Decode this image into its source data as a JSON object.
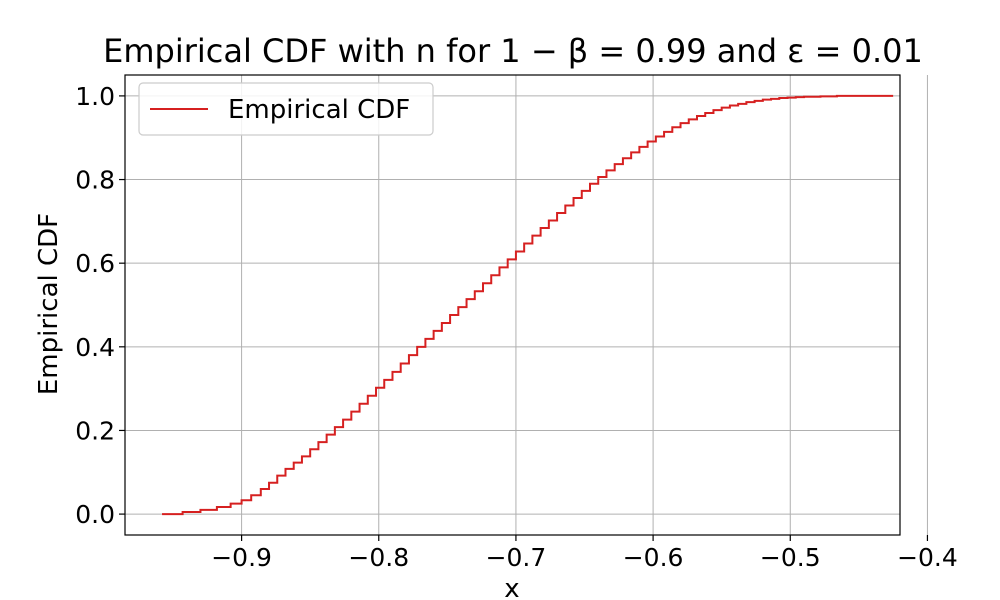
{
  "chart_data": {
    "type": "line",
    "step": "post",
    "title": "Empirical CDF with n for 1 − β = 0.99 and ε = 0.01",
    "xlabel": "x",
    "ylabel": "Empirical CDF",
    "xlim": [
      -0.985,
      -0.42
    ],
    "ylim": [
      -0.05,
      1.05
    ],
    "xticks": [
      -0.9,
      -0.8,
      -0.7,
      -0.6,
      -0.5,
      -0.4
    ],
    "xtick_labels": [
      "−0.9",
      "−0.8",
      "−0.7",
      "−0.6",
      "−0.5",
      "−0.4"
    ],
    "yticks": [
      0.0,
      0.2,
      0.4,
      0.6,
      0.8,
      1.0
    ],
    "ytick_labels": [
      "0.0",
      "0.2",
      "0.4",
      "0.6",
      "0.8",
      "1.0"
    ],
    "grid": true,
    "legend_position": "top-left",
    "series": [
      {
        "name": "Empirical CDF",
        "color": "#d62020",
        "x": [
          -0.958,
          -0.943,
          -0.93,
          -0.918,
          -0.908,
          -0.9,
          -0.893,
          -0.886,
          -0.88,
          -0.874,
          -0.868,
          -0.862,
          -0.856,
          -0.85,
          -0.844,
          -0.838,
          -0.832,
          -0.826,
          -0.82,
          -0.814,
          -0.808,
          -0.802,
          -0.796,
          -0.79,
          -0.784,
          -0.778,
          -0.772,
          -0.766,
          -0.76,
          -0.754,
          -0.748,
          -0.742,
          -0.736,
          -0.73,
          -0.724,
          -0.718,
          -0.712,
          -0.706,
          -0.7,
          -0.694,
          -0.688,
          -0.682,
          -0.676,
          -0.67,
          -0.664,
          -0.658,
          -0.652,
          -0.646,
          -0.64,
          -0.634,
          -0.628,
          -0.622,
          -0.616,
          -0.61,
          -0.604,
          -0.598,
          -0.592,
          -0.586,
          -0.58,
          -0.574,
          -0.568,
          -0.562,
          -0.556,
          -0.55,
          -0.544,
          -0.538,
          -0.532,
          -0.526,
          -0.52,
          -0.514,
          -0.508,
          -0.502,
          -0.496,
          -0.49,
          -0.484,
          -0.478,
          -0.472,
          -0.466,
          -0.46,
          -0.454,
          -0.448,
          -0.442,
          -0.425
        ],
        "y": [
          0.0,
          0.005,
          0.01,
          0.017,
          0.025,
          0.033,
          0.045,
          0.06,
          0.075,
          0.092,
          0.108,
          0.123,
          0.138,
          0.155,
          0.172,
          0.19,
          0.208,
          0.226,
          0.245,
          0.264,
          0.283,
          0.302,
          0.321,
          0.34,
          0.36,
          0.38,
          0.4,
          0.419,
          0.438,
          0.457,
          0.476,
          0.495,
          0.514,
          0.533,
          0.552,
          0.571,
          0.59,
          0.609,
          0.628,
          0.647,
          0.666,
          0.684,
          0.702,
          0.72,
          0.738,
          0.756,
          0.773,
          0.79,
          0.806,
          0.822,
          0.837,
          0.851,
          0.865,
          0.878,
          0.891,
          0.903,
          0.914,
          0.925,
          0.935,
          0.944,
          0.952,
          0.959,
          0.966,
          0.972,
          0.977,
          0.981,
          0.985,
          0.988,
          0.991,
          0.993,
          0.995,
          0.996,
          0.997,
          0.998,
          0.998,
          0.999,
          0.999,
          1.0,
          1.0,
          1.0,
          1.0,
          1.0,
          1.0
        ]
      }
    ]
  }
}
